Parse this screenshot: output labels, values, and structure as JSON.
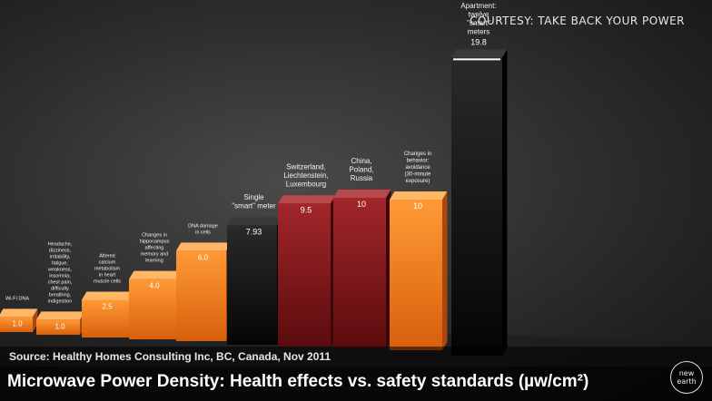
{
  "header": {
    "courtesy": "COURTESY: TAKE BACK YOUR POWER"
  },
  "footer": {
    "source": "Source: Healthy Homes Consulting Inc, BC, Canada, Nov 2011",
    "title": "Microwave Power Density: Health effects vs. safety standards (µw/cm²)",
    "logo": "new earth"
  },
  "colors": {
    "orange": "#f07a1a",
    "dark_red": "#7a1416",
    "black": "#121212"
  },
  "chart_data": {
    "type": "bar",
    "title": "Microwave Power Density: Health effects vs. safety standards (µw/cm²)",
    "categories": [
      "Wi-Fi DNA",
      "Headache, dizziness, irritability, fatigue, weakness, insomnia, chest pain, difficulty breathing, indigestion",
      "Altered calcium metabolism in heart muscle cells",
      "Changes in hippocampus affecting memory and learning",
      "DNA damage in cells",
      "Single \"smart\" meter",
      "Switzerland, Liechtenstein, Luxembourg",
      "China, Poland, Russia",
      "Changes in behavior: avoidance (30-minute exposure)",
      "Apartment: twelve \"smart\" meters"
    ],
    "values": [
      1.0,
      1.0,
      2.5,
      4.0,
      6.0,
      7.93,
      9.5,
      10,
      10,
      19.8
    ],
    "value_labels": [
      "1.0",
      "1.0",
      "2.5",
      "4.0",
      "6.0",
      "7.93",
      "9.5",
      "10",
      "10",
      "19.8"
    ],
    "bar_colors": [
      "orange",
      "orange",
      "orange",
      "orange",
      "orange",
      "black",
      "dark_red",
      "dark_red",
      "orange",
      "black"
    ],
    "ylim": [
      0,
      20
    ],
    "grid": false,
    "source": "Source: Healthy Homes Consulting Inc, BC, Canada, Nov 2011"
  }
}
